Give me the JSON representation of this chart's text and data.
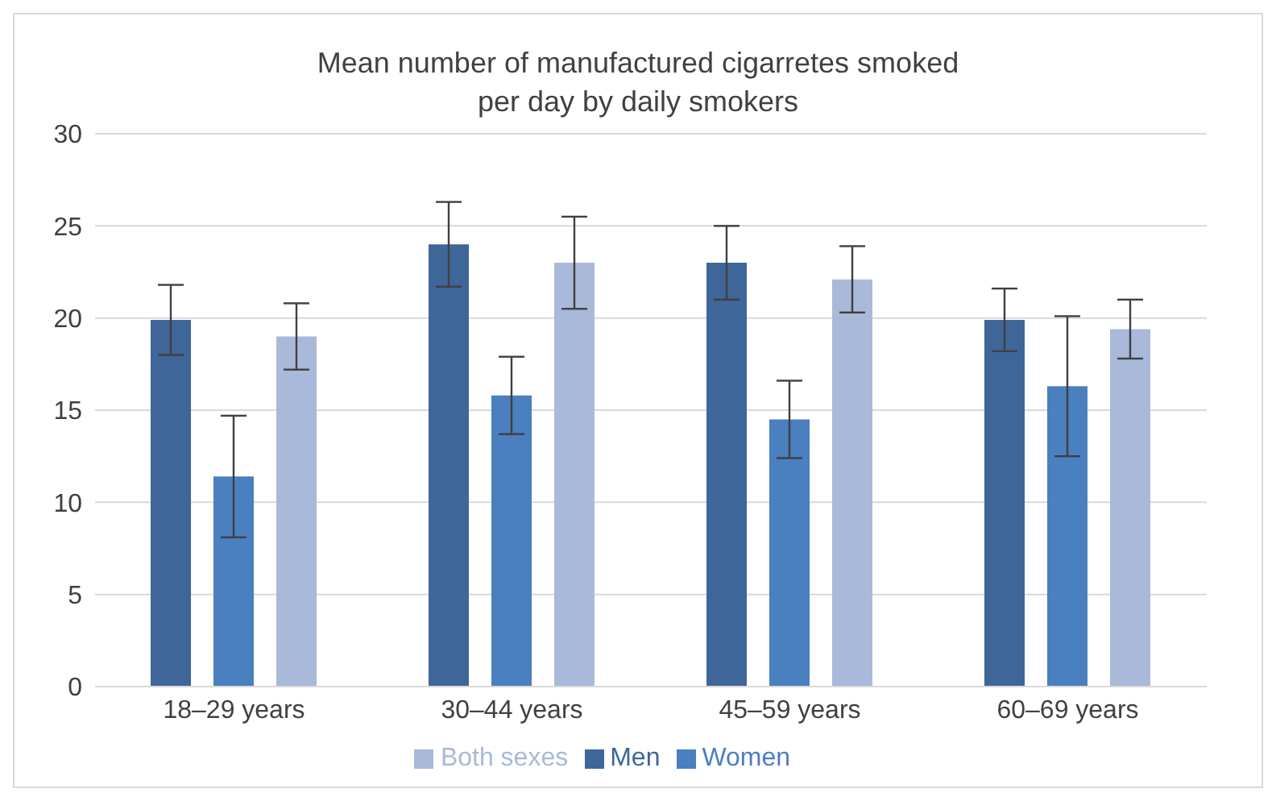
{
  "chart_data": {
    "type": "bar",
    "title": "Mean number of manufactured cigarretes smoked per day by daily smokers",
    "categories": [
      "18–29 years",
      "30–44 years",
      "45–59 years",
      "60–69 years"
    ],
    "series": [
      {
        "name": "Men",
        "color": "#3e6699",
        "values": [
          19.9,
          24.0,
          23.0,
          19.9
        ],
        "errors": [
          1.9,
          2.3,
          2.0,
          1.7
        ]
      },
      {
        "name": "Women",
        "color": "#4a7fc0",
        "values": [
          11.4,
          15.8,
          14.5,
          16.3
        ],
        "errors": [
          3.3,
          2.1,
          2.1,
          3.8
        ]
      },
      {
        "name": "Both sexes",
        "color": "#a9b9d9",
        "values": [
          19.0,
          23.0,
          22.1,
          19.4
        ],
        "errors": [
          1.8,
          2.5,
          1.8,
          1.6
        ]
      }
    ],
    "ylim": [
      0,
      30
    ],
    "yticks": [
      0,
      5,
      10,
      15,
      20,
      25,
      30
    ],
    "grid": "y",
    "legend": "bottom"
  }
}
